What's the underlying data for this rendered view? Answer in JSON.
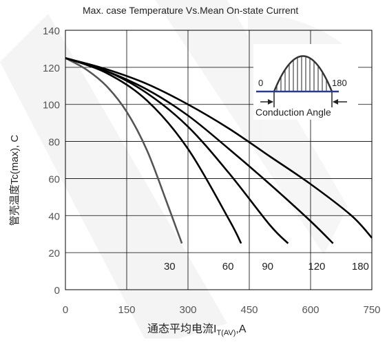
{
  "chart_data": {
    "type": "line",
    "title": "Max. case Temperature Vs.Mean On-state Current",
    "xlabel": "通态平均电流I",
    "xlabel_sub": "T(AV)",
    "xlabel_suffix": ",A",
    "ylabel": "管壳温度Tc(max), C",
    "xlim": [
      0,
      750
    ],
    "ylim": [
      0,
      140
    ],
    "xticks": [
      0,
      150,
      300,
      450,
      600,
      750
    ],
    "yticks": [
      0,
      20,
      40,
      60,
      80,
      100,
      120,
      140
    ],
    "grid": true,
    "series": [
      {
        "name": "30",
        "color": "#555555",
        "x": [
          0,
          50,
          100,
          150,
          200,
          250,
          285
        ],
        "y": [
          125,
          119,
          110,
          96,
          75,
          46,
          25
        ]
      },
      {
        "name": "60",
        "color": "#000000",
        "x": [
          0,
          100,
          200,
          300,
          400,
          430
        ],
        "y": [
          125,
          117,
          102,
          76,
          38,
          25
        ]
      },
      {
        "name": "90",
        "color": "#000000",
        "x": [
          0,
          100,
          200,
          300,
          400,
          500,
          545
        ],
        "y": [
          125,
          118,
          106,
          88,
          63,
          35,
          25
        ]
      },
      {
        "name": "120",
        "color": "#000000",
        "x": [
          0,
          100,
          200,
          300,
          400,
          500,
          600,
          655
        ],
        "y": [
          125,
          118,
          108,
          94,
          76,
          57,
          37,
          25
        ]
      },
      {
        "name": "180",
        "color": "#000000",
        "x": [
          0,
          100,
          200,
          300,
          400,
          500,
          600,
          700,
          750
        ],
        "y": [
          125,
          119,
          111,
          100,
          87,
          72,
          57,
          40,
          28
        ]
      }
    ],
    "series_labels": [
      {
        "text": "30",
        "x": 255,
        "y": 13
      },
      {
        "text": "60",
        "x": 398,
        "y": 13
      },
      {
        "text": "90",
        "x": 495,
        "y": 13
      },
      {
        "text": "120",
        "x": 615,
        "y": 13
      },
      {
        "text": "180",
        "x": 722,
        "y": 13
      }
    ],
    "inset": {
      "left_label": "0",
      "right_label": "180",
      "caption": "Conduction Angle"
    }
  }
}
